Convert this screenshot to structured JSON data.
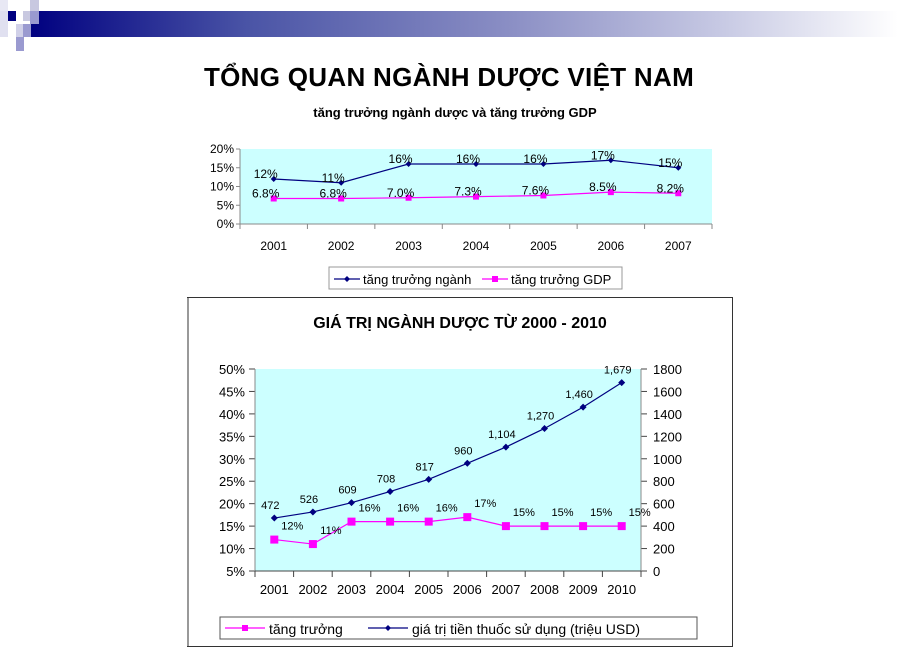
{
  "page": {
    "title": "TỔNG QUAN NGÀNH DƯỢC VIỆT NAM",
    "banner_colors": {
      "start": "#000080",
      "end": "#ffffff"
    }
  },
  "chart_data": [
    {
      "type": "line",
      "title": "tăng trưởng ngành dược và tăng trưởng GDP",
      "categories": [
        "2001",
        "2002",
        "2003",
        "2004",
        "2005",
        "2006",
        "2007"
      ],
      "series": [
        {
          "name": "tăng trưởng ngành",
          "values": [
            12,
            11,
            16,
            16,
            16,
            17,
            15
          ],
          "labels": [
            "12%",
            "11%",
            "16%",
            "16%",
            "16%",
            "17%",
            "15%"
          ],
          "color": "#000080",
          "marker": "diamond"
        },
        {
          "name": "tăng trưởng GDP",
          "values": [
            6.8,
            6.8,
            7.0,
            7.3,
            7.6,
            8.5,
            8.2
          ],
          "labels": [
            "6.8%",
            "6.8%",
            "7.0%",
            "7.3%",
            "7.6%",
            "8.5%",
            "8.2%"
          ],
          "color": "#ff00ff",
          "marker": "square"
        }
      ],
      "xlabel": "",
      "ylabel": "",
      "ylim": [
        0,
        20
      ],
      "yticks": [
        "0%",
        "5%",
        "10%",
        "15%",
        "20%"
      ],
      "plot_background": "#ccffff",
      "legend_position": "bottom"
    },
    {
      "type": "line",
      "title": "GIÁ TRỊ NGÀNH DƯỢC TỪ 2000 - 2010",
      "categories": [
        "2001",
        "2002",
        "2003",
        "2004",
        "2005",
        "2006",
        "2007",
        "2008",
        "2009",
        "2010"
      ],
      "series": [
        {
          "name": "tăng trưởng",
          "axis": "left",
          "values": [
            12,
            11,
            16,
            16,
            16,
            17,
            15,
            15,
            15,
            15
          ],
          "labels": [
            "12%",
            "11%",
            "16%",
            "16%",
            "16%",
            "17%",
            "15%",
            "15%",
            "15%",
            "15%"
          ],
          "color": "#ff00ff",
          "marker": "square"
        },
        {
          "name": "giá trị tiền thuốc sử dụng (triệu USD)",
          "axis": "right",
          "values": [
            472,
            526,
            609,
            708,
            817,
            960,
            1104,
            1270,
            1460,
            1679
          ],
          "labels": [
            "472",
            "526",
            "609",
            "708",
            "817",
            "960",
            "1,104",
            "1,270",
            "1,460",
            "1,679"
          ],
          "color": "#000080",
          "marker": "diamond"
        }
      ],
      "left_axis": {
        "ylim": [
          5,
          50
        ],
        "ticks": [
          "5%",
          "10%",
          "15%",
          "20%",
          "25%",
          "30%",
          "35%",
          "40%",
          "45%",
          "50%"
        ]
      },
      "right_axis": {
        "ylim": [
          0,
          1800
        ],
        "ticks": [
          "0",
          "200",
          "400",
          "600",
          "800",
          "1000",
          "1200",
          "1400",
          "1600",
          "1800"
        ]
      },
      "plot_background": "#ccffff",
      "legend_position": "bottom"
    }
  ]
}
